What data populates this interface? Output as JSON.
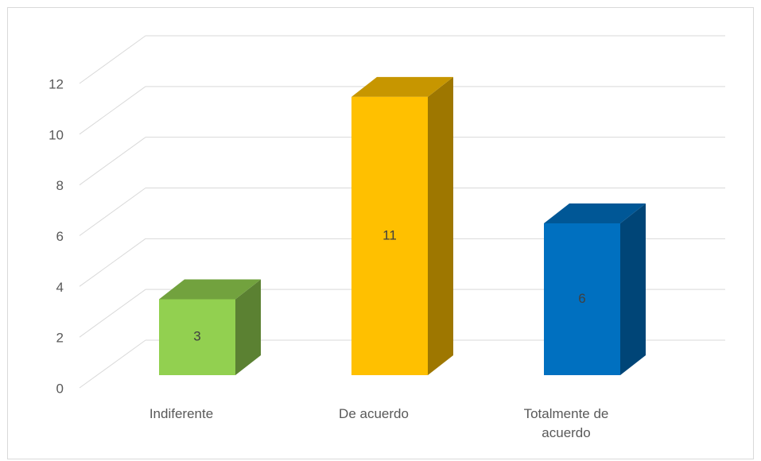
{
  "chart_data": {
    "type": "bar3d",
    "categories": [
      "Indiferente",
      "De acuerdo",
      "Totalmente de acuerdo"
    ],
    "values": [
      3,
      11,
      6
    ],
    "colors": [
      "#92d050",
      "#ffc000",
      "#0070c0"
    ],
    "ylim": [
      0,
      12
    ],
    "yticks": [
      0,
      2,
      4,
      6,
      8,
      10,
      12
    ],
    "grid": true
  }
}
